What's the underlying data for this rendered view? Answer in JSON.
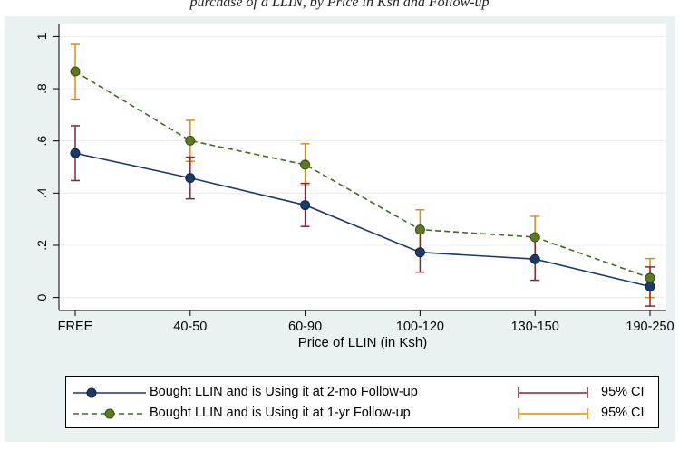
{
  "top_caption": "purchase of a LLIN, by Price in Ksh and Follow-up",
  "chart_data": {
    "type": "line",
    "title": "",
    "xlabel": "Price of LLIN (in Ksh)",
    "ylabel": "",
    "categories": [
      "FREE",
      "40-50",
      "60-90",
      "100-120",
      "130-150",
      "190-250"
    ],
    "ylim": [
      -0.05,
      1.05
    ],
    "y_ticks": [
      0,
      0.2,
      0.4,
      0.6,
      0.8,
      1
    ],
    "y_tick_labels": [
      "0",
      ".2",
      ".4",
      ".6",
      ".8",
      "1"
    ],
    "grid": true,
    "legend_position": "bottom",
    "series": [
      {
        "name": "Bought LLIN and is Using it at 2-mo Follow-up",
        "color": "#1a3a6b",
        "marker_color": "#1a3a6b",
        "line_style": "solid",
        "values": [
          0.553,
          0.458,
          0.354,
          0.173,
          0.147,
          0.042
        ],
        "ci_low": [
          0.448,
          0.378,
          0.272,
          0.097,
          0.066,
          -0.033
        ],
        "ci_high": [
          0.658,
          0.538,
          0.437,
          0.25,
          0.228,
          0.117
        ],
        "ci_name": "95% CI",
        "ci_color": "#8b2232"
      },
      {
        "name": "Bought LLIN and is Using it at 1-yr Follow-up",
        "color": "#3d6b20",
        "marker_color": "#5c7a1e",
        "line_style": "dashed",
        "values": [
          0.866,
          0.601,
          0.509,
          0.26,
          0.231,
          0.075
        ],
        "ci_low": [
          0.76,
          0.522,
          0.428,
          0.184,
          0.15,
          0
        ],
        "ci_high": [
          0.97,
          0.679,
          0.589,
          0.336,
          0.311,
          0.149
        ],
        "ci_name": "95% CI",
        "ci_color": "#e08a10"
      }
    ]
  }
}
